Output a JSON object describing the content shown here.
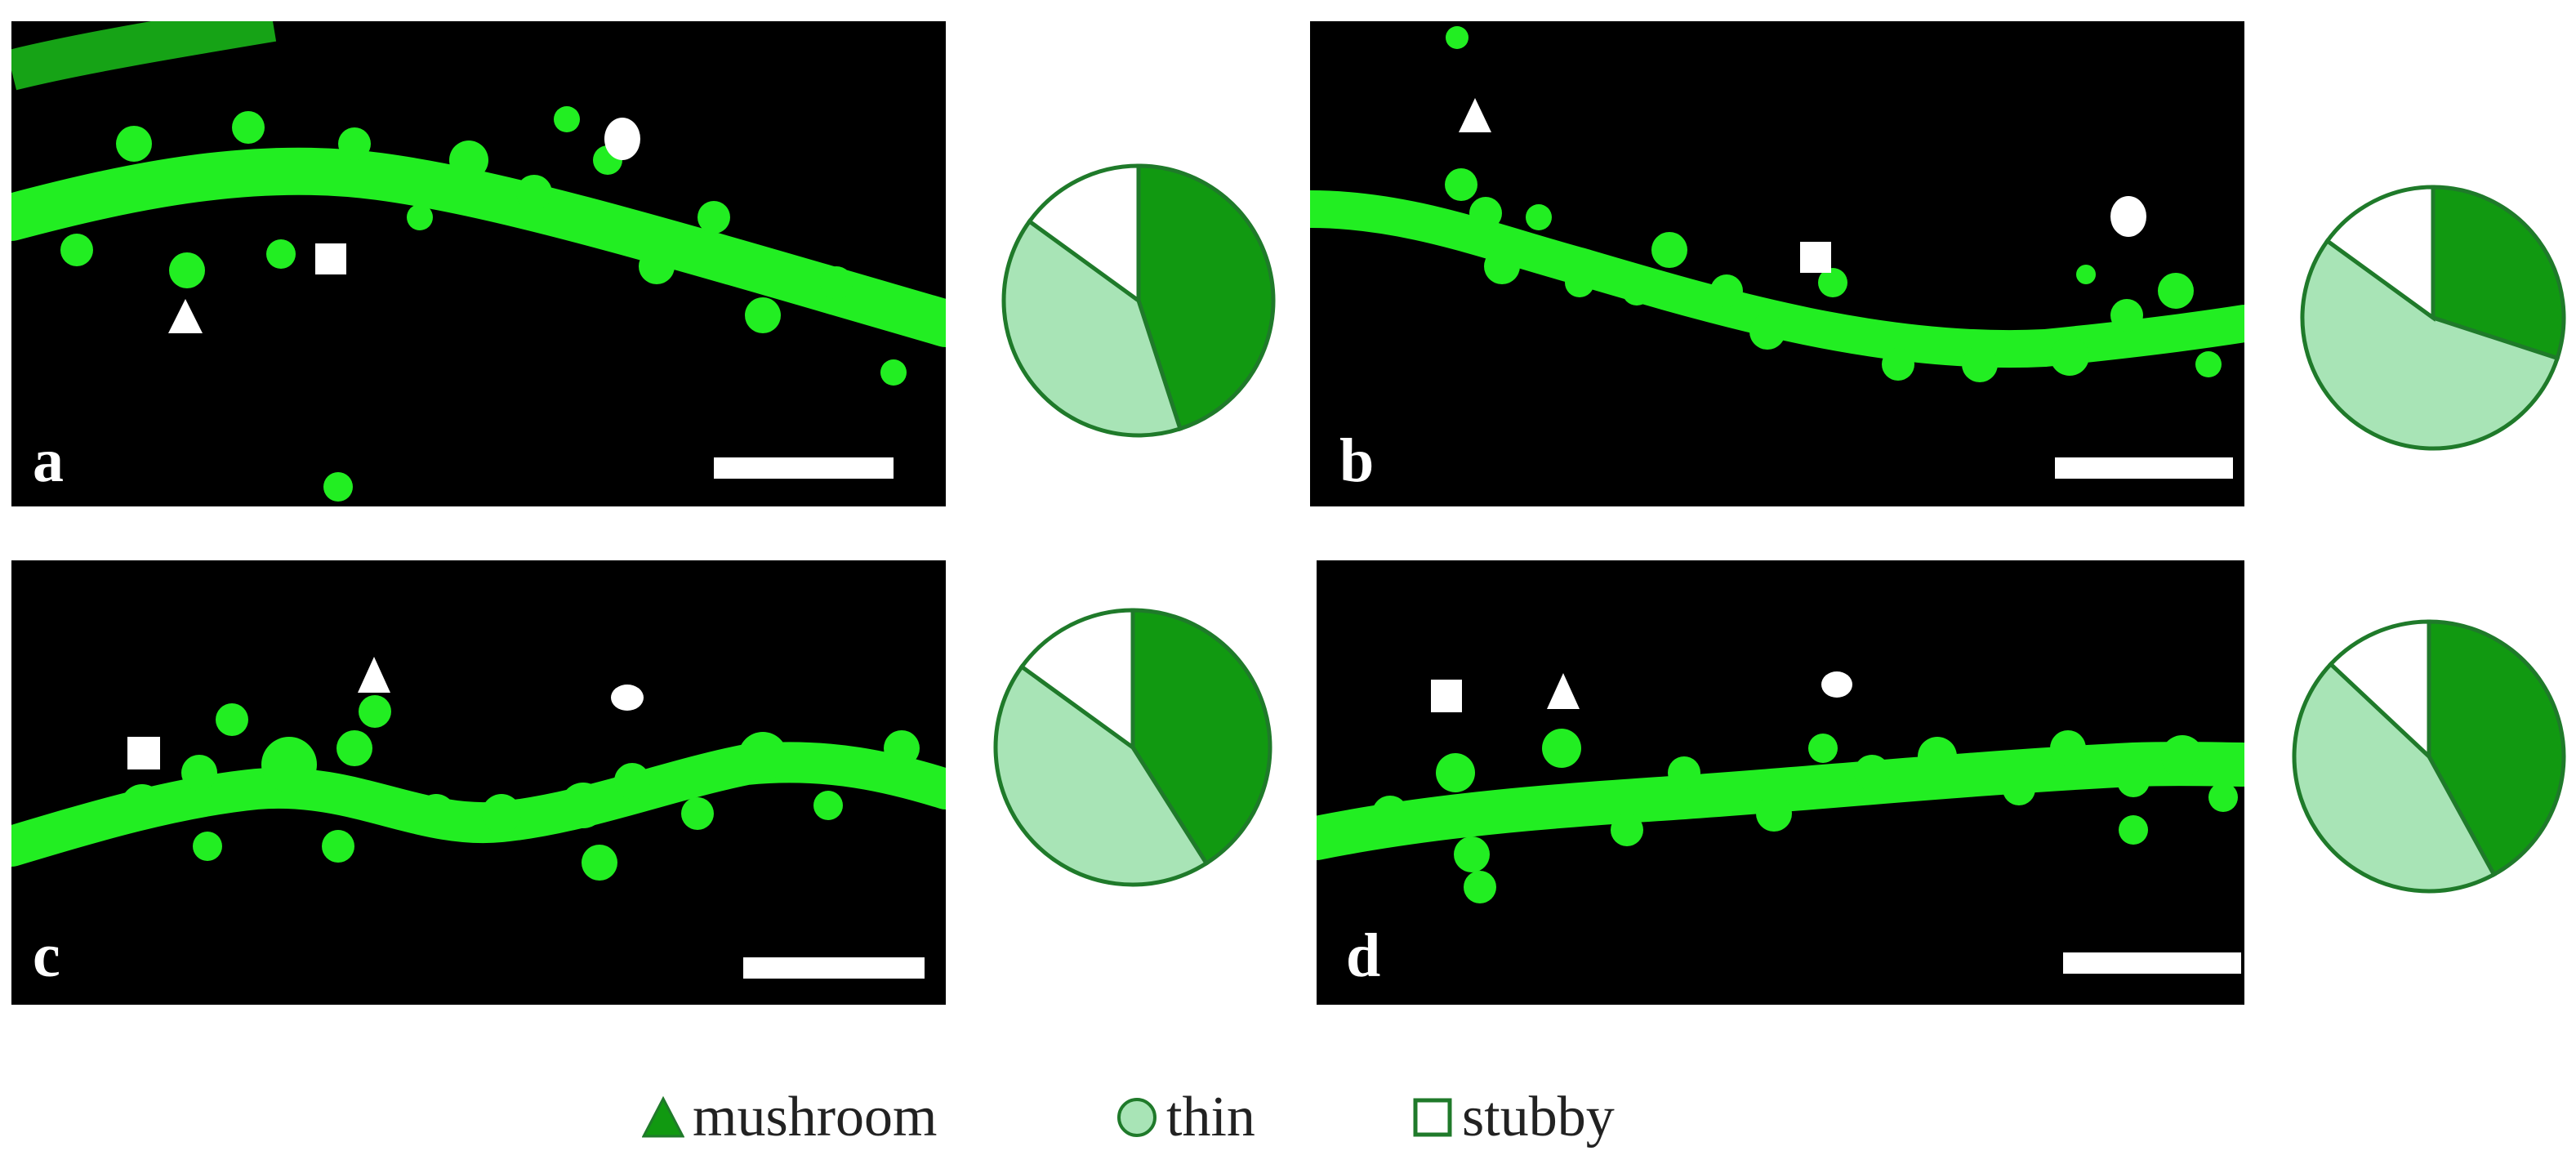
{
  "panels": [
    {
      "id": "a",
      "letter": "a",
      "pie": {
        "mushroom": 0.45,
        "thin": 0.4,
        "stubby": 0.15
      }
    },
    {
      "id": "b",
      "letter": "b",
      "pie": {
        "mushroom": 0.3,
        "thin": 0.55,
        "stubby": 0.15
      }
    },
    {
      "id": "c",
      "letter": "c",
      "pie": {
        "mushroom": 0.41,
        "thin": 0.44,
        "stubby": 0.15
      }
    },
    {
      "id": "d",
      "letter": "d",
      "pie": {
        "mushroom": 0.42,
        "thin": 0.45,
        "stubby": 0.13
      }
    }
  ],
  "legend": [
    {
      "key": "mushroom",
      "label": "mushroom",
      "color": "#119911",
      "shape": "triangle"
    },
    {
      "key": "thin",
      "label": "thin",
      "color": "#a8e4b6",
      "shape": "circle"
    },
    {
      "key": "stubby",
      "label": "stubby",
      "color": "#ffffff",
      "shape": "square"
    }
  ],
  "colors": {
    "fluorescence": "#22ee22",
    "pie_stroke": "#1f7a2a",
    "background": "#000000"
  }
}
